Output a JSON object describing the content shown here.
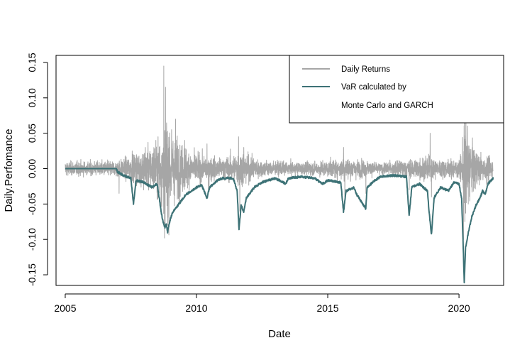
{
  "chart_data": {
    "type": "line",
    "title": "",
    "xlabel": "Date",
    "ylabel": "Daily.Perfomance",
    "xlim": [
      2004.65,
      2021.7
    ],
    "ylim": [
      -0.165,
      0.16
    ],
    "x_ticks": [
      2005,
      2010,
      2015,
      2020
    ],
    "x_tick_labels": [
      "2005",
      "2010",
      "2015",
      "2020"
    ],
    "y_ticks": [
      -0.15,
      -0.1,
      -0.05,
      0.0,
      0.05,
      0.1,
      0.15
    ],
    "y_tick_labels": [
      "-0.15",
      "-0.10",
      "-0.05",
      "0.00",
      "0.05",
      "0.10",
      "0.15"
    ],
    "legend": {
      "position": "top-right",
      "entries": [
        {
          "label": "Daily Returns",
          "color": "#a6a6a6"
        },
        {
          "label": "VaR calculated by",
          "color": "#3d7276"
        },
        {
          "label": "Monte Carlo and GARCH",
          "color": null
        }
      ]
    },
    "series": [
      {
        "name": "Daily Returns",
        "color": "#a6a6a6",
        "line_width": 1,
        "x_range": [
          2005.0,
          2021.3
        ],
        "volatility_envelope": [
          [
            2005.0,
            0.008
          ],
          [
            2006.0,
            0.008
          ],
          [
            2006.9,
            0.009
          ],
          [
            2007.3,
            0.012
          ],
          [
            2007.7,
            0.018
          ],
          [
            2008.0,
            0.022
          ],
          [
            2008.5,
            0.03
          ],
          [
            2008.7,
            0.045
          ],
          [
            2008.85,
            0.06
          ],
          [
            2009.0,
            0.045
          ],
          [
            2009.3,
            0.032
          ],
          [
            2009.7,
            0.022
          ],
          [
            2010.0,
            0.016
          ],
          [
            2010.5,
            0.014
          ],
          [
            2011.0,
            0.012
          ],
          [
            2011.5,
            0.018
          ],
          [
            2011.7,
            0.022
          ],
          [
            2012.0,
            0.015
          ],
          [
            2012.5,
            0.01
          ],
          [
            2013.0,
            0.008
          ],
          [
            2014.0,
            0.007
          ],
          [
            2015.0,
            0.009
          ],
          [
            2015.6,
            0.013
          ],
          [
            2016.0,
            0.011
          ],
          [
            2016.5,
            0.009
          ],
          [
            2017.0,
            0.006
          ],
          [
            2018.0,
            0.01
          ],
          [
            2018.9,
            0.015
          ],
          [
            2019.2,
            0.01
          ],
          [
            2020.0,
            0.01
          ],
          [
            2020.15,
            0.03
          ],
          [
            2020.25,
            0.055
          ],
          [
            2020.45,
            0.03
          ],
          [
            2020.8,
            0.016
          ],
          [
            2021.3,
            0.012
          ]
        ],
        "spikes": [
          [
            2007.05,
            -0.035
          ],
          [
            2007.55,
            0.025
          ],
          [
            2008.05,
            0.03
          ],
          [
            2008.45,
            0.04
          ],
          [
            2008.75,
            0.145
          ],
          [
            2008.78,
            -0.098
          ],
          [
            2008.82,
            0.115
          ],
          [
            2008.9,
            -0.08
          ],
          [
            2009.05,
            0.055
          ],
          [
            2009.2,
            0.07
          ],
          [
            2009.35,
            -0.045
          ],
          [
            2009.55,
            0.04
          ],
          [
            2010.4,
            0.035
          ],
          [
            2010.45,
            -0.03
          ],
          [
            2011.6,
            0.045
          ],
          [
            2011.65,
            -0.06
          ],
          [
            2011.8,
            0.03
          ],
          [
            2015.6,
            0.03
          ],
          [
            2015.65,
            -0.04
          ],
          [
            2016.45,
            -0.035
          ],
          [
            2018.1,
            -0.03
          ],
          [
            2018.9,
            0.05
          ],
          [
            2018.95,
            -0.04
          ],
          [
            2020.17,
            -0.1
          ],
          [
            2020.2,
            0.07
          ],
          [
            2020.22,
            -0.075
          ],
          [
            2020.26,
            0.09
          ],
          [
            2020.35,
            -0.05
          ]
        ]
      },
      {
        "name": "VaR calculated by Monte Carlo and GARCH",
        "color": "#3d7276",
        "line_width": 2,
        "points": [
          [
            2005.0,
            0.0
          ],
          [
            2006.95,
            0.0
          ],
          [
            2007.0,
            -0.003
          ],
          [
            2007.2,
            -0.008
          ],
          [
            2007.5,
            -0.012
          ],
          [
            2007.6,
            -0.048
          ],
          [
            2007.7,
            -0.015
          ],
          [
            2008.0,
            -0.018
          ],
          [
            2008.3,
            -0.025
          ],
          [
            2008.5,
            -0.02
          ],
          [
            2008.6,
            -0.045
          ],
          [
            2008.7,
            -0.07
          ],
          [
            2008.8,
            -0.082
          ],
          [
            2008.85,
            -0.076
          ],
          [
            2008.9,
            -0.088
          ],
          [
            2009.0,
            -0.07
          ],
          [
            2009.1,
            -0.06
          ],
          [
            2009.2,
            -0.055
          ],
          [
            2009.4,
            -0.045
          ],
          [
            2009.6,
            -0.035
          ],
          [
            2009.8,
            -0.03
          ],
          [
            2010.0,
            -0.025
          ],
          [
            2010.2,
            -0.022
          ],
          [
            2010.4,
            -0.04
          ],
          [
            2010.5,
            -0.025
          ],
          [
            2010.8,
            -0.015
          ],
          [
            2011.0,
            -0.012
          ],
          [
            2011.4,
            -0.012
          ],
          [
            2011.55,
            -0.03
          ],
          [
            2011.62,
            -0.085
          ],
          [
            2011.7,
            -0.05
          ],
          [
            2011.8,
            -0.06
          ],
          [
            2011.9,
            -0.04
          ],
          [
            2012.2,
            -0.025
          ],
          [
            2012.5,
            -0.018
          ],
          [
            2013.0,
            -0.012
          ],
          [
            2013.4,
            -0.02
          ],
          [
            2013.5,
            -0.012
          ],
          [
            2014.0,
            -0.01
          ],
          [
            2014.5,
            -0.012
          ],
          [
            2014.8,
            -0.02
          ],
          [
            2015.0,
            -0.015
          ],
          [
            2015.5,
            -0.018
          ],
          [
            2015.6,
            -0.06
          ],
          [
            2015.7,
            -0.03
          ],
          [
            2016.0,
            -0.025
          ],
          [
            2016.1,
            -0.035
          ],
          [
            2016.45,
            -0.055
          ],
          [
            2016.5,
            -0.025
          ],
          [
            2016.8,
            -0.015
          ],
          [
            2017.0,
            -0.01
          ],
          [
            2017.5,
            -0.008
          ],
          [
            2018.0,
            -0.01
          ],
          [
            2018.1,
            -0.065
          ],
          [
            2018.2,
            -0.025
          ],
          [
            2018.5,
            -0.02
          ],
          [
            2018.8,
            -0.03
          ],
          [
            2018.85,
            -0.055
          ],
          [
            2018.95,
            -0.092
          ],
          [
            2019.05,
            -0.04
          ],
          [
            2019.3,
            -0.025
          ],
          [
            2019.6,
            -0.03
          ],
          [
            2019.8,
            -0.018
          ],
          [
            2020.0,
            -0.02
          ],
          [
            2020.1,
            -0.04
          ],
          [
            2020.17,
            -0.12
          ],
          [
            2020.2,
            -0.16
          ],
          [
            2020.25,
            -0.11
          ],
          [
            2020.35,
            -0.09
          ],
          [
            2020.5,
            -0.065
          ],
          [
            2020.65,
            -0.05
          ],
          [
            2020.8,
            -0.04
          ],
          [
            2020.9,
            -0.03
          ],
          [
            2021.0,
            -0.035
          ],
          [
            2021.1,
            -0.02
          ],
          [
            2021.3,
            -0.012
          ]
        ]
      }
    ]
  }
}
